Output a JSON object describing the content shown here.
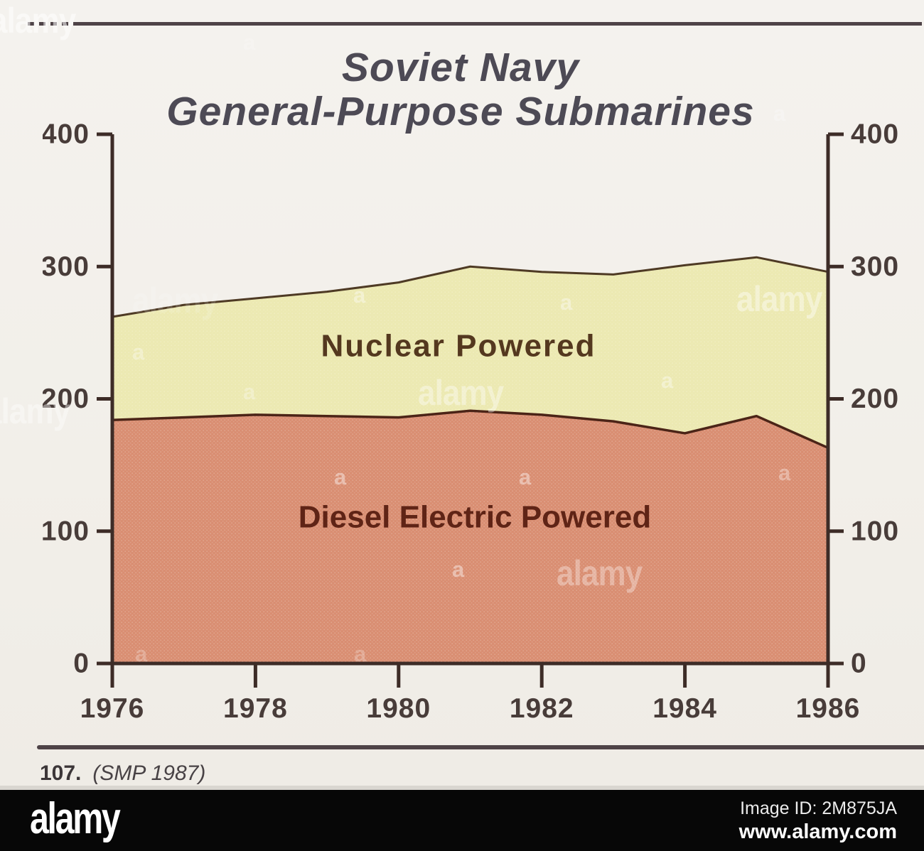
{
  "title": {
    "line1": "Soviet Navy",
    "line2": "General-Purpose Submarines"
  },
  "caption": {
    "figure_number": "107.",
    "source": "(SMP 1987)"
  },
  "alamy_bar": {
    "logo": "alamy",
    "image_id": "Image ID: 2M875JA",
    "url": "www.alamy.com"
  },
  "watermark": {
    "word": "alamy",
    "letter": "a"
  },
  "chart_data": {
    "type": "area",
    "stacked": true,
    "title": "Soviet Navy General-Purpose Submarines",
    "x": [
      1976,
      1977,
      1978,
      1979,
      1980,
      1981,
      1982,
      1983,
      1984,
      1985,
      1986
    ],
    "series": [
      {
        "name": "Diesel Electric Powered",
        "values": [
          184,
          186,
          188,
          187,
          186,
          191,
          188,
          183,
          174,
          187,
          163
        ],
        "fill": "#d98e72",
        "edge": "#4b2417",
        "label_color": "#5f2416"
      },
      {
        "name": "Nuclear Powered",
        "values": [
          78,
          85,
          88,
          94,
          102,
          109,
          108,
          111,
          127,
          120,
          133
        ],
        "fill": "#ece9b2",
        "edge": "#4e3a24",
        "label_color": "#54381f"
      }
    ],
    "stacked_totals": [
      262,
      271,
      276,
      281,
      288,
      300,
      296,
      294,
      301,
      307,
      296
    ],
    "x_ticks": [
      "1976",
      "1978",
      "1980",
      "1982",
      "1984",
      "1986"
    ],
    "y_ticks": [
      "0",
      "100",
      "200",
      "300",
      "400"
    ],
    "ylim": [
      0,
      400
    ],
    "y_axes": "both",
    "grid": false,
    "legend": "labels inside areas"
  }
}
